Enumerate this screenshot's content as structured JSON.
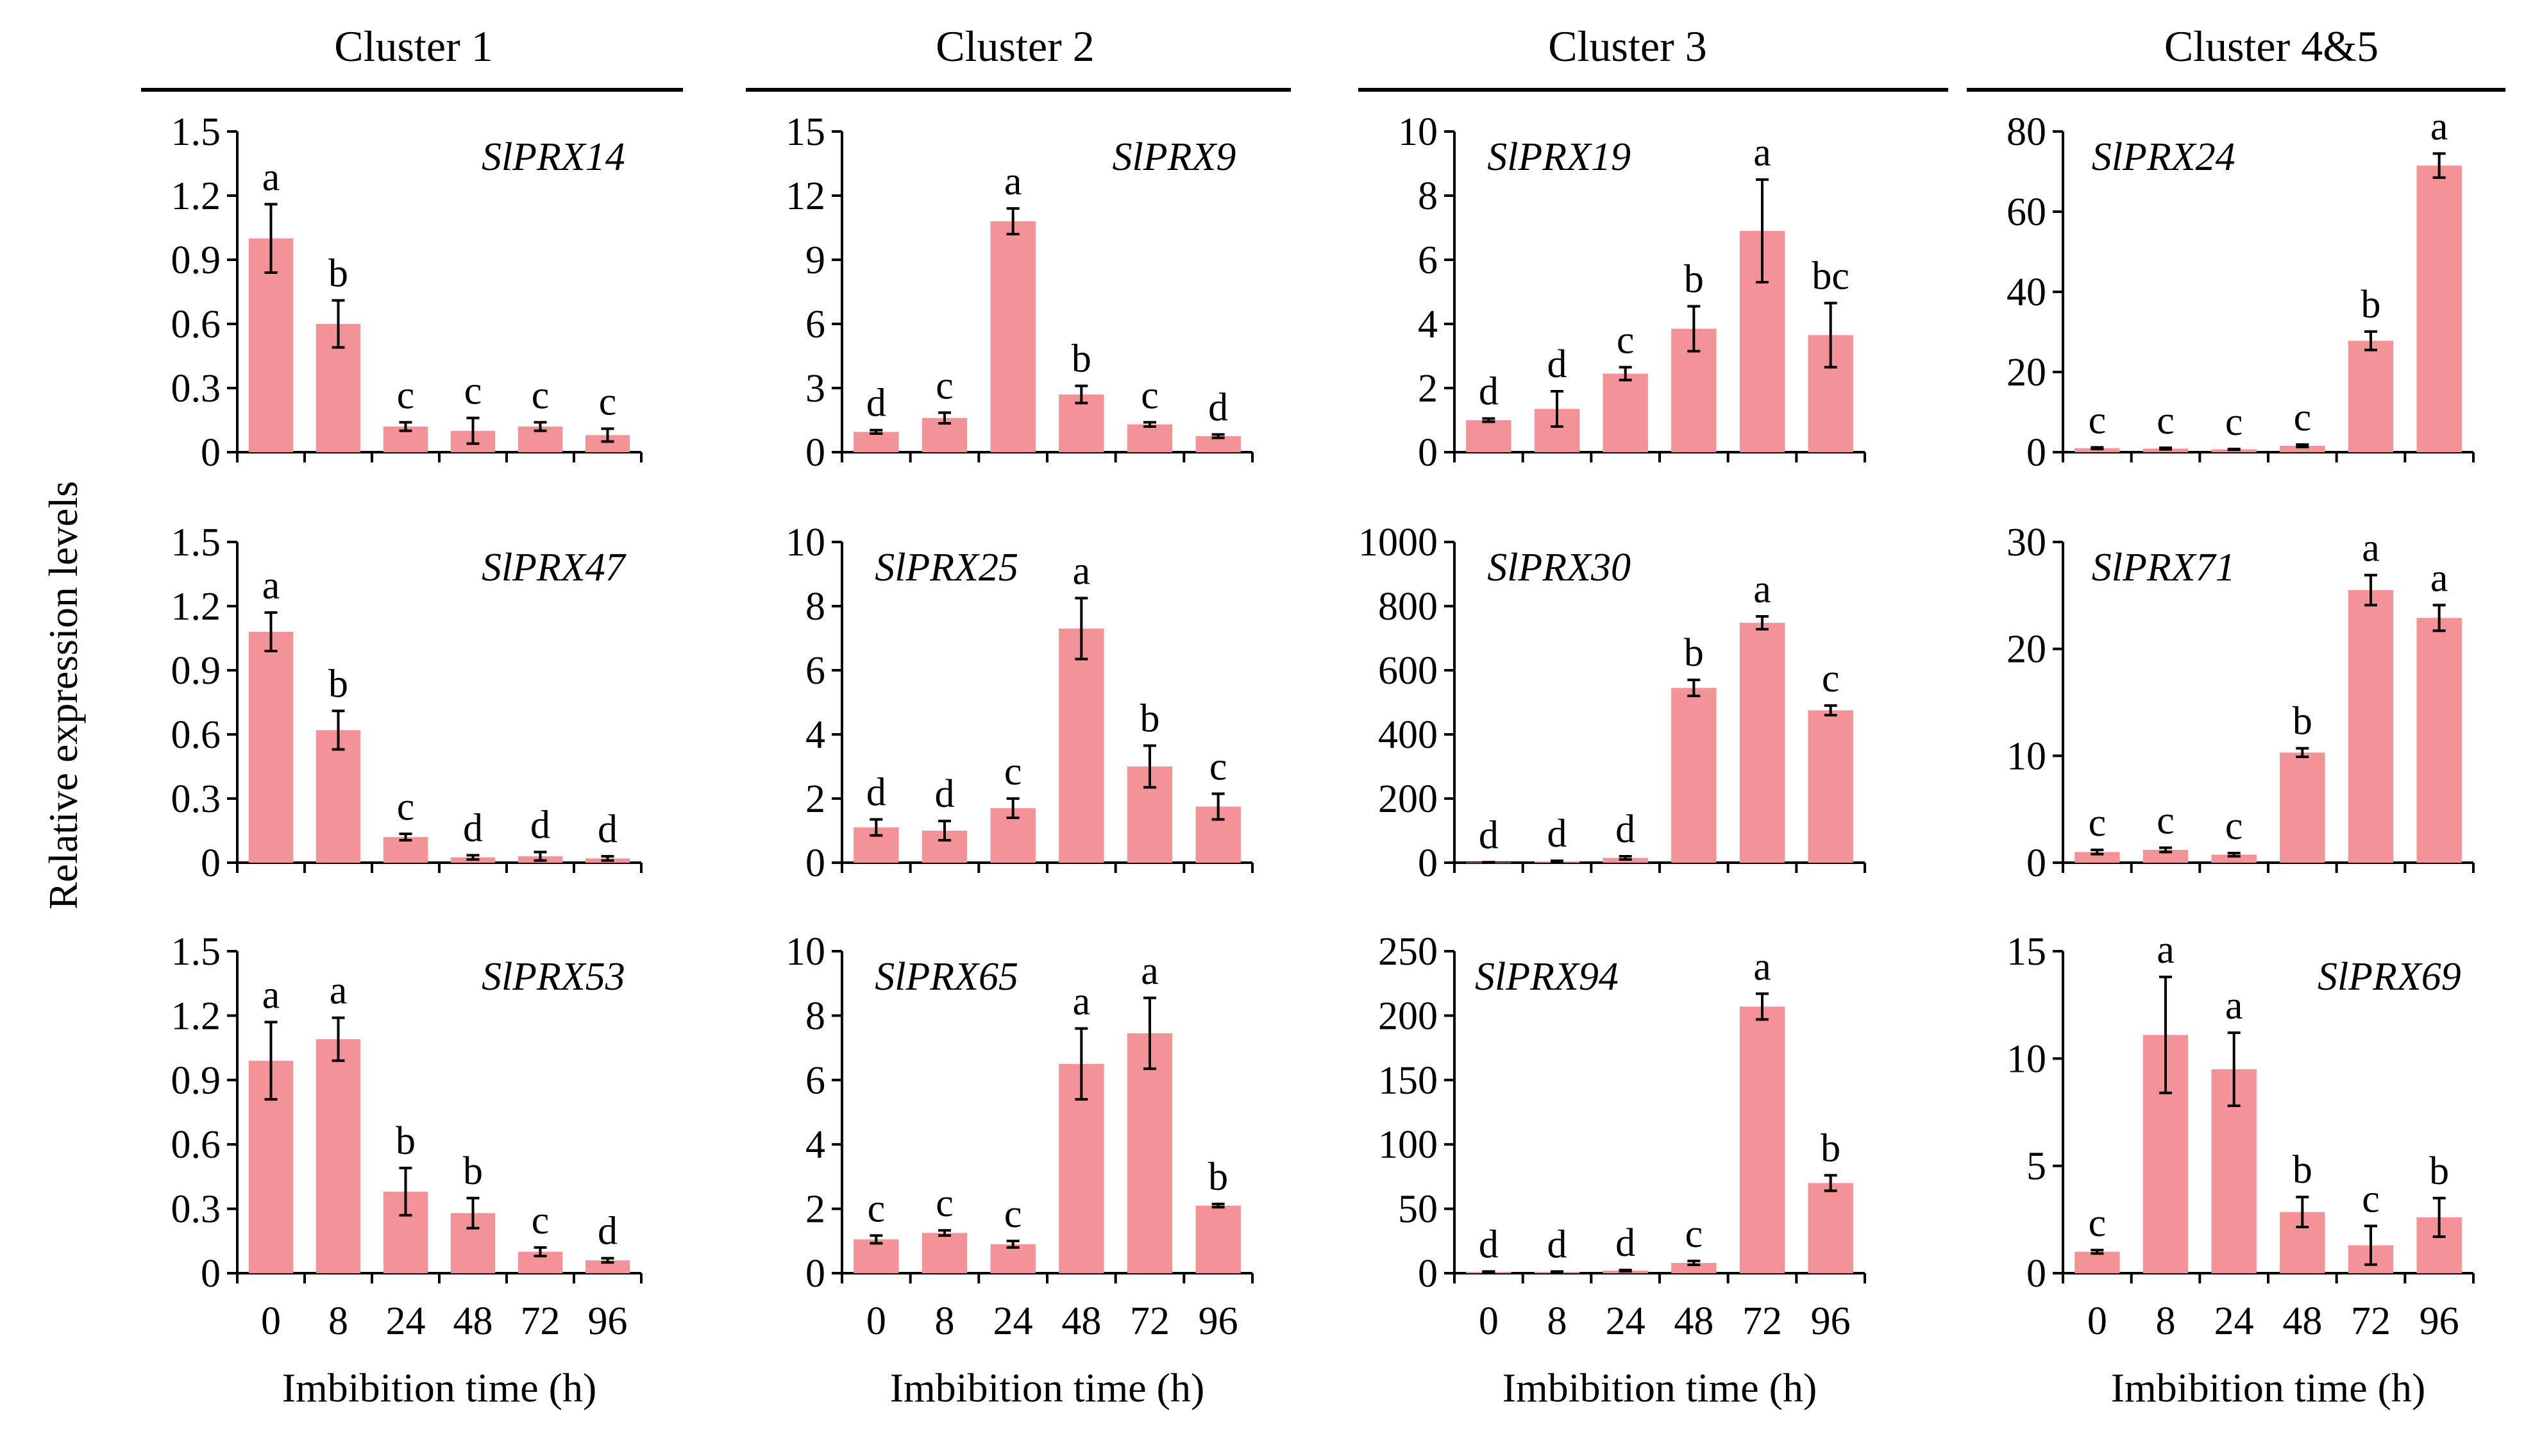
{
  "figure": {
    "ylabel": "Relative expression levels",
    "xlabel": "Imbibition time (h)",
    "bar_color": "#f49397",
    "axis_color": "#000000"
  },
  "columns": [
    {
      "title": "Cluster 1"
    },
    {
      "title": "Cluster 2"
    },
    {
      "title": "Cluster 3"
    },
    {
      "title": "Cluster 4&5"
    }
  ],
  "chart_data": [
    {
      "type": "bar",
      "title": "SlPRX14",
      "categories": [
        "0",
        "8",
        "24",
        "48",
        "72",
        "96"
      ],
      "ylim": [
        0,
        1.5
      ],
      "yticks": [
        "0",
        "0.3",
        "0.6",
        "0.9",
        "1.2",
        "1.5"
      ],
      "values": [
        1.0,
        0.6,
        0.12,
        0.1,
        0.12,
        0.08
      ],
      "errors": [
        0.16,
        0.11,
        0.02,
        0.06,
        0.02,
        0.03
      ],
      "letters": [
        "a",
        "b",
        "c",
        "c",
        "c",
        "c"
      ],
      "xlabel": "",
      "ylabel": ""
    },
    {
      "type": "bar",
      "title": "SlPRX9",
      "categories": [
        "0",
        "8",
        "24",
        "48",
        "72",
        "96"
      ],
      "ylim": [
        0,
        15
      ],
      "yticks": [
        "0",
        "3",
        "6",
        "9",
        "12",
        "15"
      ],
      "values": [
        0.95,
        1.6,
        10.8,
        2.7,
        1.3,
        0.75
      ],
      "errors": [
        0.08,
        0.25,
        0.6,
        0.4,
        0.1,
        0.08
      ],
      "letters": [
        "d",
        "c",
        "a",
        "b",
        "c",
        "d"
      ],
      "xlabel": "",
      "ylabel": ""
    },
    {
      "type": "bar",
      "title": "SlPRX19",
      "categories": [
        "0",
        "8",
        "24",
        "48",
        "72",
        "96"
      ],
      "ylim": [
        0,
        10
      ],
      "yticks": [
        "0",
        "2",
        "4",
        "6",
        "8",
        "10"
      ],
      "values": [
        1.0,
        1.35,
        2.45,
        3.85,
        6.9,
        3.65
      ],
      "errors": [
        0.05,
        0.55,
        0.2,
        0.7,
        1.6,
        1.0
      ],
      "letters": [
        "d",
        "d",
        "c",
        "b",
        "a",
        "bc"
      ],
      "xlabel": "",
      "ylabel": ""
    },
    {
      "type": "bar",
      "title": "SlPRX24",
      "categories": [
        "0",
        "8",
        "24",
        "48",
        "72",
        "96"
      ],
      "ylim": [
        0,
        80
      ],
      "yticks": [
        "0",
        "20",
        "40",
        "60",
        "80"
      ],
      "values": [
        1.0,
        0.9,
        0.7,
        1.6,
        27.8,
        71.5
      ],
      "errors": [
        0.2,
        0.2,
        0.1,
        0.3,
        2.3,
        3.0
      ],
      "letters": [
        "c",
        "c",
        "c",
        "c",
        "b",
        "a"
      ],
      "xlabel": "",
      "ylabel": ""
    },
    {
      "type": "bar",
      "title": "SlPRX47",
      "categories": [
        "0",
        "8",
        "24",
        "48",
        "72",
        "96"
      ],
      "ylim": [
        0,
        1.5
      ],
      "yticks": [
        "0",
        "0.3",
        "0.6",
        "0.9",
        "1.2",
        "1.5"
      ],
      "values": [
        1.08,
        0.62,
        0.12,
        0.025,
        0.03,
        0.02
      ],
      "errors": [
        0.09,
        0.09,
        0.015,
        0.01,
        0.02,
        0.01
      ],
      "letters": [
        "a",
        "b",
        "c",
        "d",
        "d",
        "d"
      ],
      "xlabel": "",
      "ylabel": ""
    },
    {
      "type": "bar",
      "title": "SlPRX25",
      "categories": [
        "0",
        "8",
        "24",
        "48",
        "72",
        "96"
      ],
      "ylim": [
        0,
        10
      ],
      "yticks": [
        "0",
        "2",
        "4",
        "6",
        "8",
        "10"
      ],
      "values": [
        1.1,
        1.0,
        1.7,
        7.3,
        3.0,
        1.75
      ],
      "errors": [
        0.25,
        0.3,
        0.3,
        0.95,
        0.65,
        0.4
      ],
      "letters": [
        "d",
        "d",
        "c",
        "a",
        "b",
        "c"
      ],
      "xlabel": "",
      "ylabel": ""
    },
    {
      "type": "bar",
      "title": "SlPRX30",
      "categories": [
        "0",
        "8",
        "24",
        "48",
        "72",
        "96"
      ],
      "ylim": [
        0,
        1000
      ],
      "yticks": [
        "0",
        "200",
        "400",
        "600",
        "800",
        "1000"
      ],
      "values": [
        1,
        4,
        15,
        545,
        748,
        475
      ],
      "errors": [
        0.5,
        2,
        5,
        25,
        20,
        15
      ],
      "letters": [
        "d",
        "d",
        "d",
        "b",
        "a",
        "c"
      ],
      "xlabel": "",
      "ylabel": ""
    },
    {
      "type": "bar",
      "title": "SlPRX71",
      "categories": [
        "0",
        "8",
        "24",
        "48",
        "72",
        "96"
      ],
      "ylim": [
        0,
        30
      ],
      "yticks": [
        "0",
        "10",
        "20",
        "30"
      ],
      "values": [
        1.0,
        1.2,
        0.75,
        10.3,
        25.5,
        22.9
      ],
      "errors": [
        0.2,
        0.2,
        0.15,
        0.4,
        1.4,
        1.2
      ],
      "letters": [
        "c",
        "c",
        "c",
        "b",
        "a",
        "a"
      ],
      "xlabel": "",
      "ylabel": ""
    },
    {
      "type": "bar",
      "title": "SlPRX53",
      "categories": [
        "0",
        "8",
        "24",
        "48",
        "72",
        "96"
      ],
      "ylim": [
        0,
        1.5
      ],
      "yticks": [
        "0",
        "0.3",
        "0.6",
        "0.9",
        "1.2",
        "1.5"
      ],
      "values": [
        0.99,
        1.09,
        0.38,
        0.28,
        0.1,
        0.06
      ],
      "errors": [
        0.18,
        0.1,
        0.11,
        0.07,
        0.02,
        0.01
      ],
      "letters": [
        "a",
        "a",
        "b",
        "b",
        "c",
        "d"
      ],
      "xlabel": "Imbibition time (h)",
      "ylabel": ""
    },
    {
      "type": "bar",
      "title": "SlPRX65",
      "categories": [
        "0",
        "8",
        "24",
        "48",
        "72",
        "96"
      ],
      "ylim": [
        0,
        10
      ],
      "yticks": [
        "0",
        "2",
        "4",
        "6",
        "8",
        "10"
      ],
      "values": [
        1.05,
        1.25,
        0.9,
        6.5,
        7.45,
        2.1
      ],
      "errors": [
        0.12,
        0.08,
        0.1,
        1.1,
        1.1,
        0.05
      ],
      "letters": [
        "c",
        "c",
        "c",
        "a",
        "a",
        "b"
      ],
      "xlabel": "Imbibition time (h)",
      "ylabel": ""
    },
    {
      "type": "bar",
      "title": "SlPRX94",
      "categories": [
        "0",
        "8",
        "24",
        "48",
        "72",
        "96"
      ],
      "ylim": [
        0,
        250
      ],
      "yticks": [
        "0",
        "50",
        "100",
        "150",
        "200",
        "250"
      ],
      "values": [
        1,
        1,
        2,
        8,
        207,
        70
      ],
      "errors": [
        0.3,
        0.3,
        0.5,
        1.5,
        10,
        6
      ],
      "letters": [
        "d",
        "d",
        "d",
        "c",
        "a",
        "b"
      ],
      "xlabel": "Imbibition time (h)",
      "ylabel": ""
    },
    {
      "type": "bar",
      "title": "SlPRX69",
      "categories": [
        "0",
        "8",
        "24",
        "48",
        "72",
        "96"
      ],
      "ylim": [
        0,
        15
      ],
      "yticks": [
        "0",
        "5",
        "10",
        "15"
      ],
      "values": [
        1.0,
        11.1,
        9.5,
        2.85,
        1.3,
        2.6
      ],
      "errors": [
        0.08,
        2.7,
        1.7,
        0.7,
        0.9,
        0.9
      ],
      "letters": [
        "c",
        "a",
        "a",
        "b",
        "c",
        "b"
      ],
      "xlabel": "Imbibition time (h)",
      "ylabel": ""
    }
  ]
}
